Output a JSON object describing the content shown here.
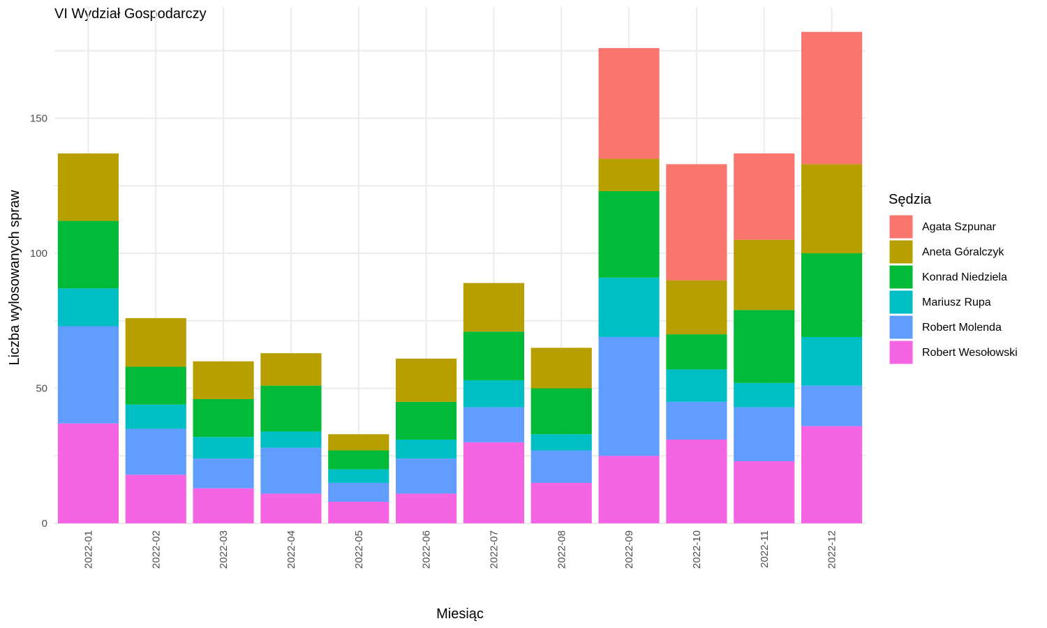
{
  "chart_data": {
    "type": "bar",
    "stacked": true,
    "title": "VI Wydział Gospodarczy",
    "xlabel": "Miesiąc",
    "ylabel": "Liczba wylosowanych spraw",
    "ylim": [
      0,
      186
    ],
    "yticks": [
      0,
      50,
      100,
      150
    ],
    "grid": true,
    "legend_position": "right",
    "legend_title": "Sędzia",
    "categories": [
      "2022-01",
      "2022-02",
      "2022-03",
      "2022-04",
      "2022-05",
      "2022-06",
      "2022-07",
      "2022-08",
      "2022-09",
      "2022-10",
      "2022-11",
      "2022-12"
    ],
    "series": [
      {
        "name": "Agata Szpunar",
        "color": "#F8766D",
        "values": [
          0,
          0,
          0,
          0,
          0,
          0,
          0,
          0,
          41,
          43,
          32,
          49
        ]
      },
      {
        "name": "Aneta Góralczyk",
        "color": "#B79F00",
        "values": [
          25,
          18,
          14,
          12,
          6,
          16,
          18,
          15,
          12,
          20,
          26,
          33
        ]
      },
      {
        "name": "Konrad Niedziela",
        "color": "#00BA38",
        "values": [
          25,
          14,
          14,
          17,
          7,
          14,
          18,
          17,
          32,
          13,
          27,
          31
        ]
      },
      {
        "name": "Mariusz Rupa",
        "color": "#00BFC4",
        "values": [
          14,
          9,
          8,
          6,
          5,
          7,
          10,
          6,
          22,
          12,
          9,
          18
        ]
      },
      {
        "name": "Robert Molenda",
        "color": "#619CFF",
        "values": [
          36,
          17,
          11,
          17,
          7,
          13,
          13,
          12,
          44,
          14,
          20,
          15
        ]
      },
      {
        "name": "Robert Wesołowski",
        "color": "#F564E3",
        "values": [
          37,
          18,
          13,
          11,
          8,
          11,
          30,
          15,
          25,
          31,
          23,
          36
        ]
      }
    ]
  }
}
